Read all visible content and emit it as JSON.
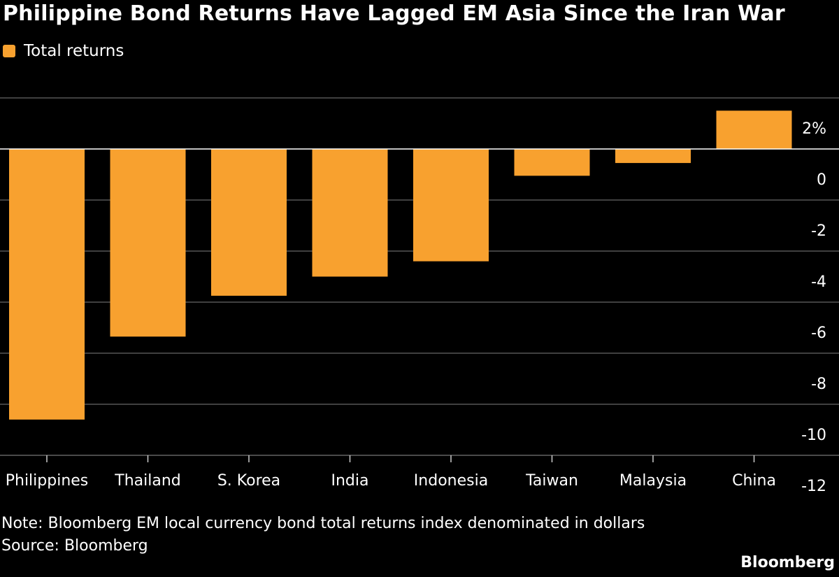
{
  "title": "Philippine Bond Returns Have Lagged EM Asia Since the Iran War",
  "note": "Note: Bloomberg EM local currency bond total returns index denominated in dollars",
  "source": "Source: Bloomberg",
  "brand": "Bloomberg",
  "colors": {
    "background": "#000000",
    "bar": "#f8a12f",
    "grid": "#555555",
    "text": "#ffffff"
  },
  "chart_data": {
    "type": "bar",
    "title": "Philippine Bond Returns Have Lagged EM Asia Since the Iran War",
    "categories": [
      "Philippines",
      "Thailand",
      "S. Korea",
      "India",
      "Indonesia",
      "Taiwan",
      "Malaysia",
      "China"
    ],
    "series": [
      {
        "name": "Total returns",
        "values": [
          -10.6,
          -7.35,
          -5.75,
          -5.0,
          -4.4,
          -1.05,
          -0.55,
          1.5
        ]
      }
    ],
    "ylim": [
      -12,
      2
    ],
    "yticks": [
      2,
      0,
      -2,
      -4,
      -6,
      -8,
      -10,
      -12
    ],
    "ytick_labels": [
      "2%",
      "0",
      "-2",
      "-4",
      "-6",
      "-8",
      "-10",
      "-12"
    ],
    "xlabel": "",
    "ylabel": "",
    "grid": true,
    "y_axis_position": "right",
    "legend_position": "top-left"
  }
}
